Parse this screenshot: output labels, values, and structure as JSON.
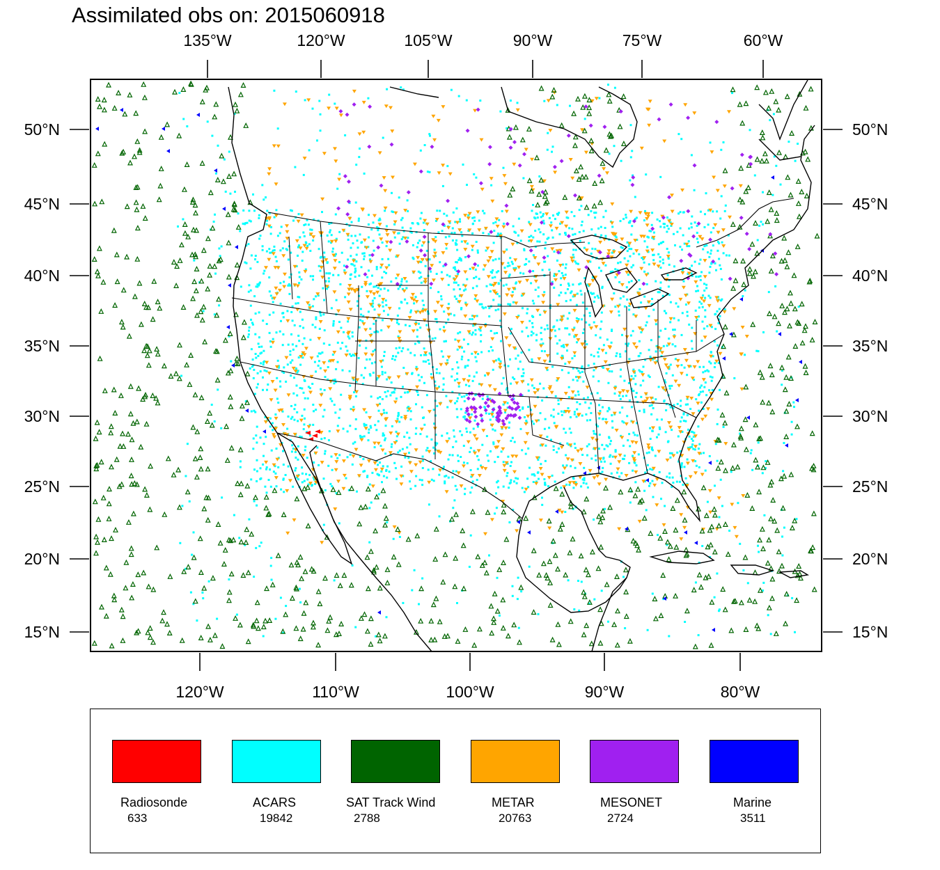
{
  "title": "Assimilated obs on: 2015060918",
  "map": {
    "top_axis_labels": [
      "135°W",
      "120°W",
      "105°W",
      "90°W",
      "75°W",
      "60°W"
    ],
    "bottom_axis_labels": [
      "120°W",
      "110°W",
      "100°W",
      "90°W",
      "80°W"
    ],
    "left_axis_labels": [
      "50°N",
      "45°N",
      "40°N",
      "35°N",
      "30°N",
      "25°N",
      "20°N",
      "15°N"
    ],
    "right_axis_labels": [
      "50°N",
      "45°N",
      "40°N",
      "35°N",
      "30°N",
      "25°N",
      "20°N",
      "15°N"
    ]
  },
  "legend": {
    "items": [
      {
        "name": "Radiosonde",
        "count": "633",
        "color": "#ff0000"
      },
      {
        "name": "ACARS",
        "count": "19842",
        "color": "#00ffff"
      },
      {
        "name": "SAT Track Wind",
        "count": "2788",
        "color": "#006400"
      },
      {
        "name": "METAR",
        "count": "20763",
        "color": "#ffa500"
      },
      {
        "name": "MESONET",
        "count": "2724",
        "color": "#a020f0"
      },
      {
        "name": "Marine",
        "count": "3511",
        "color": "#0000ff"
      }
    ]
  }
}
